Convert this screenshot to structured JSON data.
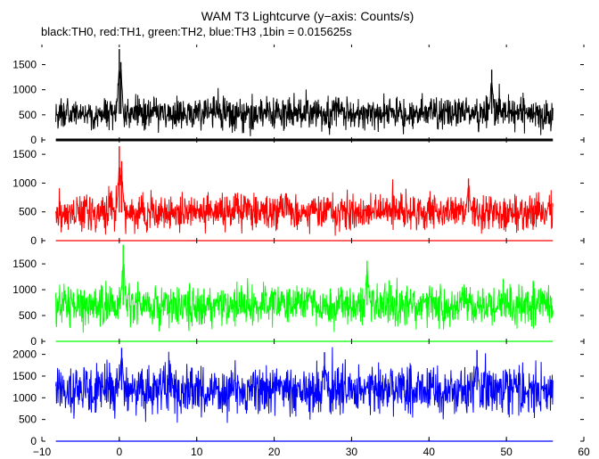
{
  "title": "WAM T3 Lightcurve (y−axis: Counts/s)",
  "subtitle": "black:TH0, red:TH1, green:TH2, blue:TH3 ,1bin = 0.015625s",
  "chart_data": {
    "type": "line",
    "title": "WAM T3 Lightcurve (y−axis: Counts/s)",
    "subtitle": "black:TH0, red:TH1, green:TH2, blue:TH3 ,1bin = 0.015625s",
    "xlim": [
      -10,
      60
    ],
    "x_ticks": [
      -10,
      0,
      10,
      20,
      30,
      40,
      50,
      60
    ],
    "x_data_range": [
      -8.2,
      56
    ],
    "bin_size": 0.015625,
    "grid": false,
    "panels": [
      {
        "channel": "TH0",
        "color": "#000000",
        "ylim": [
          0,
          1900
        ],
        "y_ticks": [
          0,
          500,
          1000,
          1500
        ],
        "baseline_mean": 520,
        "noise_spread": 160,
        "peaks": [
          {
            "x": 0.0,
            "y": 1810
          },
          {
            "x": 0.2,
            "y": 1550
          },
          {
            "x": 48.1,
            "y": 1400
          }
        ]
      },
      {
        "channel": "TH1",
        "color": "#ff0000",
        "ylim": [
          0,
          1750
        ],
        "y_ticks": [
          0,
          500,
          1000,
          1500
        ],
        "baseline_mean": 490,
        "noise_spread": 150,
        "peaks": [
          {
            "x": 0.0,
            "y": 1640
          },
          {
            "x": 0.3,
            "y": 1380
          },
          {
            "x": 45.1,
            "y": 1080
          }
        ]
      },
      {
        "channel": "TH2",
        "color": "#00ff00",
        "ylim": [
          0,
          1950
        ],
        "y_ticks": [
          0,
          500,
          1000,
          1500
        ],
        "baseline_mean": 700,
        "noise_spread": 190,
        "peaks": [
          {
            "x": 0.5,
            "y": 1870
          },
          {
            "x": 32.0,
            "y": 1560
          }
        ]
      },
      {
        "channel": "TH3",
        "color": "#0000ff",
        "ylim": [
          0,
          2300
        ],
        "y_ticks": [
          0,
          500,
          1000,
          1500,
          2000
        ],
        "baseline_mean": 1180,
        "noise_spread": 260,
        "peaks": [
          {
            "x": 0.3,
            "y": 2150
          },
          {
            "x": 26.5,
            "y": 2050
          },
          {
            "x": 46.2,
            "y": 2100
          }
        ]
      }
    ]
  }
}
